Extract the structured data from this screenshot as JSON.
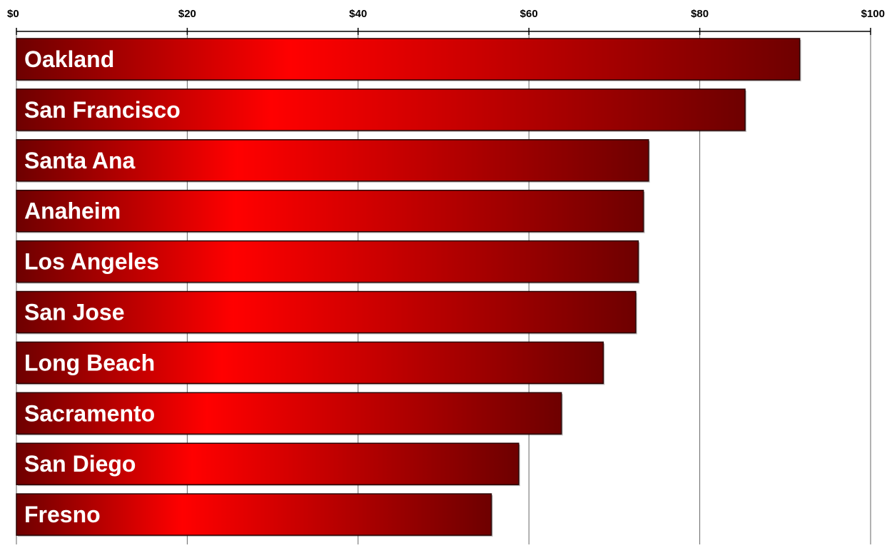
{
  "chart_data": {
    "type": "bar",
    "orientation": "horizontal",
    "axis_position": "top",
    "grid": true,
    "xlim": [
      0,
      100
    ],
    "ticks": [
      0,
      20,
      40,
      60,
      80,
      100
    ],
    "tick_labels": [
      "$0",
      "$20",
      "$40",
      "$60",
      "$80",
      "$100"
    ],
    "categories": [
      "Oakland",
      "San Francisco",
      "Santa Ana",
      "Anaheim",
      "Los Angeles",
      "San Jose",
      "Long Beach",
      "Sacramento",
      "San Diego",
      "Fresno"
    ],
    "values": [
      91.7,
      85.3,
      74.0,
      73.4,
      72.8,
      72.5,
      68.7,
      63.8,
      58.8,
      55.6
    ],
    "title": "",
    "xlabel": "",
    "ylabel": ""
  },
  "colors": {
    "bar_dark": "#6e0000",
    "bar_mid": "#c80000",
    "bar_bright": "#ff0000",
    "bar_outline": "#2a0000",
    "gridline": "#666666",
    "axis": "#000000",
    "label_text": "#ffffff"
  }
}
